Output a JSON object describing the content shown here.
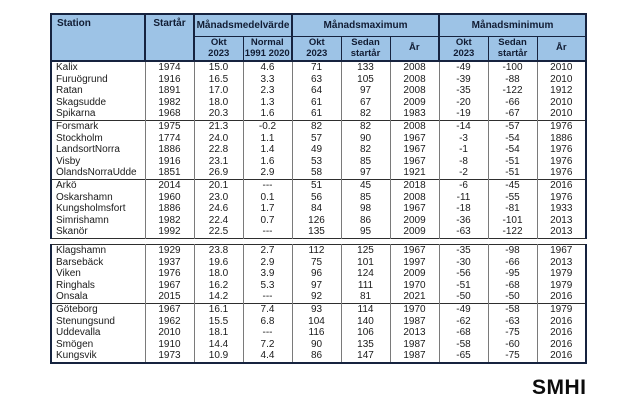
{
  "header": {
    "station": "Station",
    "startyear": "Startår",
    "group_mean": "Månadsmedelvärde",
    "group_max": "Månadsmaximum",
    "group_min": "Månadsminimum",
    "sub": {
      "okt": "Okt\n2023",
      "normal": "Normal\n1991 2020",
      "sedan": "Sedan\nstartår",
      "year": "År"
    }
  },
  "footer": {
    "logo": "SMHI"
  },
  "colors": {
    "header_bg": "#9dc3e6",
    "border_dark": "#16233f",
    "grid_gray": "#7a7a7a",
    "text": "#1a1a1a"
  },
  "chart_data": {
    "type": "table",
    "columns": [
      "Station",
      "Startår",
      "Månadsmedelvärde Okt 2023",
      "Månadsmedelvärde Normal 1991 2020",
      "Månadsmaximum Okt 2023",
      "Månadsmaximum Sedan startår",
      "Månadsmaximum År",
      "Månadsminimum Okt 2023",
      "Månadsminimum Sedan startår",
      "Månadsminimum År"
    ],
    "groups": [
      [
        [
          "Kalix",
          "1974",
          "15.0",
          "4.6",
          "71",
          "133",
          "2008",
          "-49",
          "-100",
          "2010"
        ],
        [
          "Furuögrund",
          "1916",
          "16.5",
          "3.3",
          "63",
          "105",
          "2008",
          "-39",
          "-88",
          "2010"
        ],
        [
          "Ratan",
          "1891",
          "17.0",
          "2.3",
          "64",
          "97",
          "2008",
          "-35",
          "-122",
          "1912"
        ],
        [
          "Skagsudde",
          "1982",
          "18.0",
          "1.3",
          "61",
          "67",
          "2009",
          "-20",
          "-66",
          "2010"
        ],
        [
          "Spikarna",
          "1968",
          "20.3",
          "1.6",
          "61",
          "82",
          "1983",
          "-19",
          "-67",
          "2010"
        ]
      ],
      [
        [
          "Forsmark",
          "1975",
          "21.3",
          "-0.2",
          "82",
          "82",
          "2008",
          "-14",
          "-57",
          "1976"
        ],
        [
          "Stockholm",
          "1774",
          "24.0",
          "1.1",
          "57",
          "90",
          "1967",
          "-3",
          "-54",
          "1886"
        ],
        [
          "LandsortNorra",
          "1886",
          "22.8",
          "1.4",
          "49",
          "82",
          "1967",
          "-1",
          "-54",
          "1976"
        ],
        [
          "Visby",
          "1916",
          "23.1",
          "1.6",
          "53",
          "85",
          "1967",
          "-8",
          "-51",
          "1976"
        ],
        [
          "ÖlandsNorraUdde",
          "1851",
          "26.9",
          "2.9",
          "58",
          "97",
          "1921",
          "-2",
          "-51",
          "1976"
        ]
      ],
      [
        [
          "Arkö",
          "2014",
          "20.1",
          "---",
          "51",
          "45",
          "2018",
          "-6",
          "-45",
          "2016"
        ],
        [
          "Oskarshamn",
          "1960",
          "23.0",
          "0.1",
          "56",
          "85",
          "2008",
          "-11",
          "-55",
          "1976"
        ],
        [
          "Kungsholmsfort",
          "1886",
          "24.6",
          "1.7",
          "84",
          "98",
          "1967",
          "-18",
          "-81",
          "1933"
        ],
        [
          "Simrishamn",
          "1982",
          "22.4",
          "0.7",
          "126",
          "86",
          "2009",
          "-36",
          "-101",
          "2013"
        ],
        [
          "Skanör",
          "1992",
          "22.5",
          "---",
          "135",
          "95",
          "2009",
          "-63",
          "-122",
          "2013"
        ]
      ],
      [
        [
          "Klagshamn",
          "1929",
          "23.8",
          "2.7",
          "112",
          "125",
          "1967",
          "-35",
          "-98",
          "1967"
        ],
        [
          "Barsebäck",
          "1937",
          "19.6",
          "2.9",
          "75",
          "101",
          "1997",
          "-30",
          "-66",
          "2013"
        ],
        [
          "Viken",
          "1976",
          "18.0",
          "3.9",
          "96",
          "124",
          "2009",
          "-56",
          "-95",
          "1979"
        ],
        [
          "Ringhals",
          "1967",
          "16.2",
          "5.3",
          "97",
          "111",
          "1970",
          "-51",
          "-68",
          "1979"
        ],
        [
          "Onsala",
          "2015",
          "14.2",
          "---",
          "92",
          "81",
          "2021",
          "-50",
          "-50",
          "2016"
        ]
      ],
      [
        [
          "Göteborg",
          "1967",
          "16.1",
          "7.4",
          "93",
          "114",
          "1970",
          "-49",
          "-58",
          "1979"
        ],
        [
          "Stenungsund",
          "1962",
          "15.5",
          "6.8",
          "104",
          "140",
          "1987",
          "-62",
          "-63",
          "2016"
        ],
        [
          "Uddevalla",
          "2010",
          "18.1",
          "---",
          "116",
          "106",
          "2013",
          "-68",
          "-75",
          "2016"
        ],
        [
          "Smögen",
          "1910",
          "14.4",
          "7.2",
          "90",
          "135",
          "1987",
          "-58",
          "-60",
          "2016"
        ],
        [
          "Kungsvik",
          "1973",
          "10.9",
          "4.4",
          "86",
          "147",
          "1987",
          "-65",
          "-75",
          "2016"
        ]
      ]
    ]
  }
}
